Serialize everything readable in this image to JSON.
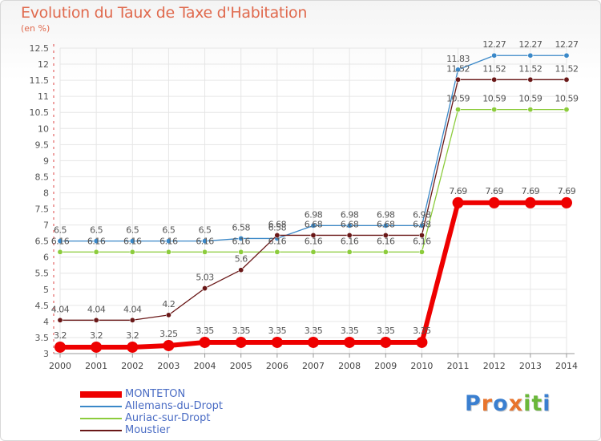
{
  "title": "Evolution du Taux de Taxe d'Habitation",
  "subtitle": "(en %)",
  "chart_data": {
    "type": "line",
    "title": "Evolution du Taux de Taxe d'Habitation",
    "ylabel": "(en %)",
    "x": [
      "2000",
      "2001",
      "2002",
      "2003",
      "2004",
      "2005",
      "2006",
      "2007",
      "2008",
      "2009",
      "2010",
      "2011",
      "2012",
      "2013",
      "2014"
    ],
    "ylim": [
      3,
      12.5
    ],
    "yticks": [
      3,
      3.5,
      4,
      4.5,
      5,
      5.5,
      6,
      6.5,
      7,
      7.5,
      8,
      8.5,
      9,
      9.5,
      10,
      10.5,
      11,
      11.5,
      12,
      12.5
    ],
    "grid": true,
    "legend_position": "bottom-left",
    "series": [
      {
        "name": "MONTETON",
        "color": "#ee0000",
        "values": [
          3.2,
          3.2,
          3.2,
          3.25,
          3.35,
          3.35,
          3.35,
          3.35,
          3.35,
          3.35,
          3.35,
          7.69,
          7.69,
          7.69,
          7.69
        ],
        "labels": [
          "3.2",
          "3.2",
          "3.2",
          "3.25",
          "3.35",
          "3.35",
          "3.35",
          "3.35",
          "3.35",
          "3.35",
          "3.35",
          "7.69",
          "7.69",
          "7.69",
          "7.69"
        ]
      },
      {
        "name": "Allemans-du-Dropt",
        "color": "#3a88c8",
        "values": [
          6.5,
          6.5,
          6.5,
          6.5,
          6.5,
          6.58,
          6.58,
          6.98,
          6.98,
          6.98,
          6.98,
          11.83,
          12.27,
          12.27,
          12.27
        ],
        "labels": [
          "6.5",
          "6.5",
          "6.5",
          "6.5",
          "6.5",
          "6.58",
          "6.58",
          "6.98",
          "6.98",
          "6.98",
          "6.98",
          "11.83",
          "12.27",
          "12.27",
          "12.27"
        ]
      },
      {
        "name": "Auriac-sur-Dropt",
        "color": "#8ccc3c",
        "values": [
          6.16,
          6.16,
          6.16,
          6.16,
          6.16,
          6.16,
          6.16,
          6.16,
          6.16,
          6.16,
          6.16,
          10.59,
          10.59,
          10.59,
          10.59
        ],
        "labels": [
          "6.16",
          "6.16",
          "6.16",
          "6.16",
          "6.16",
          "6.16",
          "6.16",
          "6.16",
          "6.16",
          "6.16",
          "6.16",
          "10.59",
          "10.59",
          "10.59",
          "10.59"
        ]
      },
      {
        "name": "Moustier",
        "color": "#6a1818",
        "values": [
          4.04,
          4.04,
          4.04,
          4.2,
          5.03,
          5.6,
          6.68,
          6.68,
          6.68,
          6.68,
          6.68,
          11.52,
          11.52,
          11.52,
          11.52
        ],
        "labels": [
          "4.04",
          "4.04",
          "4.04",
          "4.2",
          "5.03",
          "5.6",
          "6.68",
          "6.68",
          "6.68",
          "6.68",
          "6.68",
          "11.52",
          "11.52",
          "11.52",
          "11.52"
        ]
      }
    ]
  },
  "logo": {
    "text": "Proxiti",
    "letters": [
      "P",
      "r",
      "o",
      "x",
      "i",
      "t",
      "i"
    ],
    "colors": [
      "#3a7fd0",
      "#e8742c",
      "#3a7fd0",
      "#e8742c",
      "#6bb83a",
      "#6bb83a",
      "#3a7fd0"
    ]
  }
}
